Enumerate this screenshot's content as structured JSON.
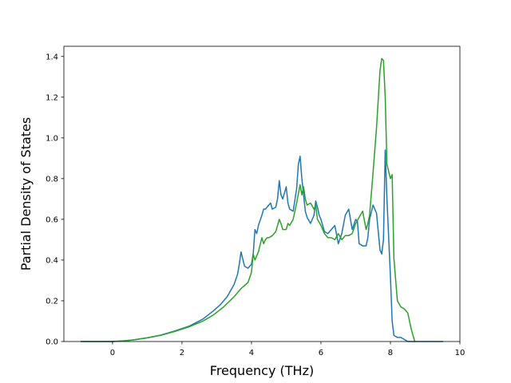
{
  "chart_data": {
    "type": "line",
    "title": "",
    "xlabel": "Frequency (THz)",
    "ylabel": "Partial Density of States",
    "xlim": [
      -1.4,
      10.0
    ],
    "ylim": [
      0.0,
      1.45
    ],
    "x_ticks": [
      0,
      2,
      4,
      6,
      8,
      10
    ],
    "y_ticks": [
      0.0,
      0.2,
      0.4,
      0.6,
      0.8,
      1.0,
      1.2,
      1.4
    ],
    "grid": false,
    "legend": "none",
    "series": [
      {
        "color": "#1f77b4",
        "x": [
          -0.9,
          0.0,
          0.3,
          0.6,
          1.0,
          1.4,
          1.8,
          2.2,
          2.6,
          2.9,
          3.1,
          3.3,
          3.5,
          3.6,
          3.65,
          3.7,
          3.8,
          3.9,
          4.0,
          4.05,
          4.1,
          4.15,
          4.2,
          4.3,
          4.35,
          4.4,
          4.5,
          4.55,
          4.6,
          4.7,
          4.75,
          4.8,
          4.85,
          4.9,
          5.0,
          5.05,
          5.1,
          5.2,
          5.3,
          5.35,
          5.4,
          5.45,
          5.5,
          5.55,
          5.6,
          5.7,
          5.8,
          5.85,
          5.9,
          5.95,
          6.0,
          6.1,
          6.2,
          6.3,
          6.4,
          6.5,
          6.6,
          6.7,
          6.8,
          6.9,
          7.0,
          7.05,
          7.1,
          7.2,
          7.3,
          7.35,
          7.4,
          7.5,
          7.6,
          7.7,
          7.75,
          7.8,
          7.85,
          7.9,
          8.0,
          8.05,
          8.1,
          8.15,
          8.2,
          8.3,
          8.5,
          8.6,
          8.7,
          9.5
        ],
        "y": [
          0.0,
          0.0,
          0.003,
          0.008,
          0.018,
          0.032,
          0.052,
          0.075,
          0.11,
          0.15,
          0.18,
          0.22,
          0.28,
          0.33,
          0.38,
          0.44,
          0.37,
          0.36,
          0.38,
          0.43,
          0.55,
          0.53,
          0.57,
          0.62,
          0.65,
          0.65,
          0.67,
          0.68,
          0.65,
          0.66,
          0.7,
          0.79,
          0.72,
          0.7,
          0.76,
          0.68,
          0.65,
          0.64,
          0.75,
          0.87,
          0.91,
          0.8,
          0.72,
          0.64,
          0.61,
          0.58,
          0.62,
          0.69,
          0.66,
          0.62,
          0.6,
          0.54,
          0.53,
          0.55,
          0.57,
          0.48,
          0.53,
          0.62,
          0.65,
          0.55,
          0.6,
          0.59,
          0.48,
          0.47,
          0.47,
          0.51,
          0.6,
          0.67,
          0.63,
          0.45,
          0.43,
          0.5,
          0.94,
          0.7,
          0.32,
          0.1,
          0.03,
          0.025,
          0.02,
          0.02,
          0.0,
          0.0,
          0.0,
          0.0
        ]
      },
      {
        "color": "#2ca02c",
        "x": [
          -0.9,
          0.0,
          0.3,
          0.6,
          1.0,
          1.4,
          1.8,
          2.2,
          2.6,
          2.9,
          3.2,
          3.5,
          3.7,
          3.9,
          4.0,
          4.05,
          4.1,
          4.15,
          4.2,
          4.3,
          4.35,
          4.4,
          4.45,
          4.5,
          4.6,
          4.7,
          4.8,
          4.85,
          4.9,
          5.0,
          5.05,
          5.1,
          5.2,
          5.3,
          5.4,
          5.45,
          5.5,
          5.55,
          5.6,
          5.7,
          5.8,
          5.85,
          5.9,
          6.0,
          6.1,
          6.2,
          6.3,
          6.4,
          6.5,
          6.6,
          6.7,
          6.8,
          6.9,
          7.0,
          7.1,
          7.2,
          7.3,
          7.35,
          7.4,
          7.5,
          7.6,
          7.7,
          7.75,
          7.8,
          7.85,
          7.9,
          8.0,
          8.05,
          8.1,
          8.2,
          8.3,
          8.4,
          8.5,
          8.6,
          8.7
        ],
        "y": [
          0.0,
          0.0,
          0.003,
          0.008,
          0.018,
          0.031,
          0.05,
          0.072,
          0.1,
          0.13,
          0.17,
          0.22,
          0.26,
          0.29,
          0.34,
          0.43,
          0.4,
          0.42,
          0.44,
          0.51,
          0.48,
          0.5,
          0.51,
          0.51,
          0.52,
          0.54,
          0.6,
          0.58,
          0.55,
          0.55,
          0.58,
          0.57,
          0.6,
          0.68,
          0.77,
          0.72,
          0.76,
          0.7,
          0.67,
          0.68,
          0.65,
          0.67,
          0.6,
          0.57,
          0.53,
          0.51,
          0.51,
          0.5,
          0.53,
          0.5,
          0.52,
          0.52,
          0.53,
          0.58,
          0.61,
          0.64,
          0.55,
          0.58,
          0.62,
          0.83,
          1.05,
          1.33,
          1.39,
          1.38,
          1.2,
          0.87,
          0.8,
          0.82,
          0.41,
          0.2,
          0.17,
          0.16,
          0.14,
          0.06,
          0.0
        ]
      }
    ]
  }
}
